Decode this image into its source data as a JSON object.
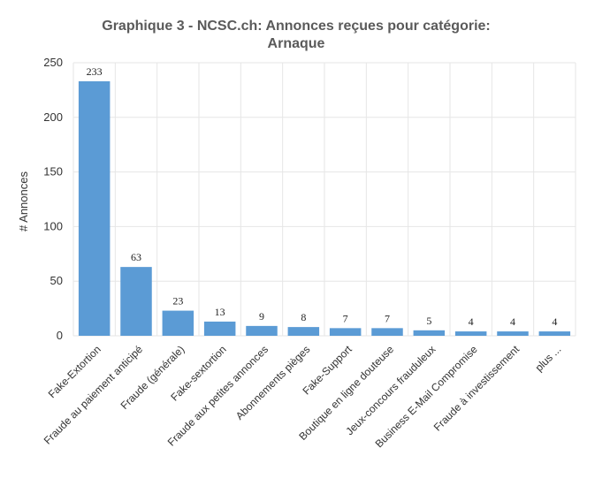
{
  "chart_data": {
    "type": "bar",
    "title_lines": [
      "Graphique 3 - NCSC.ch: Annonces reçues pour catégorie:",
      "Arnaque"
    ],
    "xlabel": "",
    "ylabel": "# Annonces",
    "ylim": [
      0,
      250
    ],
    "yticks": [
      0,
      50,
      100,
      150,
      200,
      250
    ],
    "categories": [
      "Fake-Extortion",
      "Fraude au paiement anticipé",
      "Fraude (générale)",
      "Fake-sextortion",
      "Fraude aux petites annonces",
      "Abonnements pièges",
      "Fake-Support",
      "Boutique en ligne douteuse",
      "Jeux-concours frauduleux",
      "Business E-Mail Compromise",
      "Fraude à investissement",
      "plus ..."
    ],
    "values": [
      233,
      63,
      23,
      13,
      9,
      8,
      7,
      7,
      5,
      4,
      4,
      4
    ],
    "grid": true,
    "bar_color": "#5b9bd5"
  }
}
